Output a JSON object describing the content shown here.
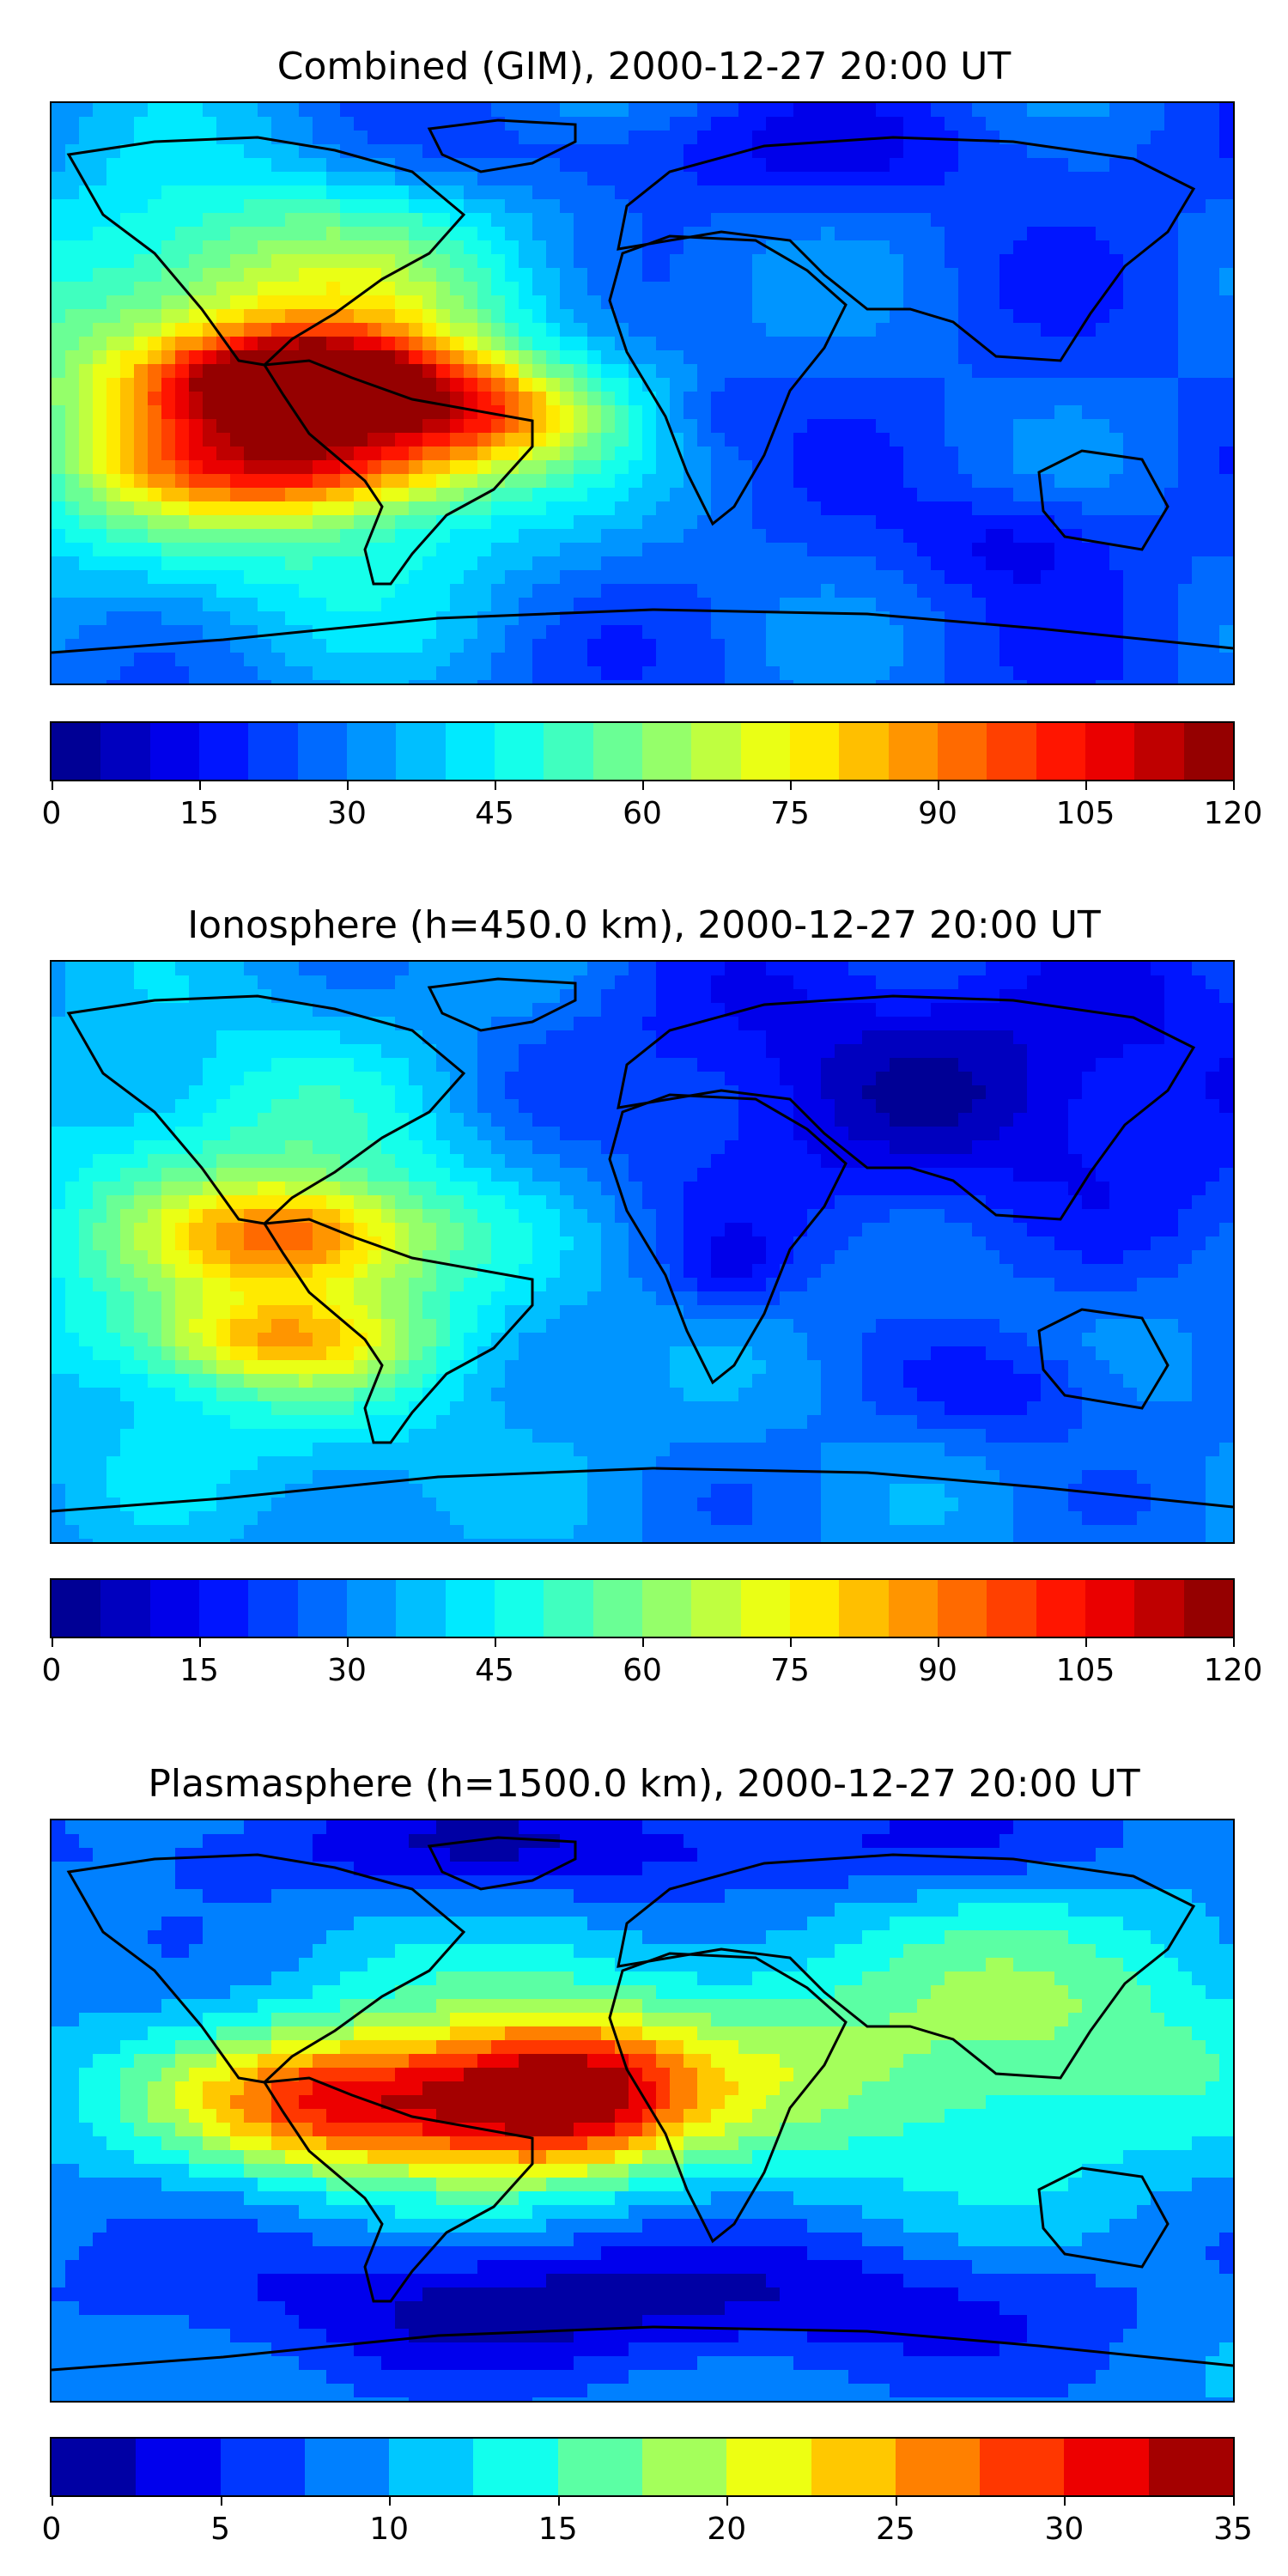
{
  "figure": {
    "panels": [
      {
        "id": "combined",
        "title": "Combined (GIM), 2000-12-27 20:00 UT",
        "field": "combined",
        "colorbar": {
          "min": 0,
          "max": 120,
          "levels": 24,
          "ticks": [
            "0",
            "15",
            "30",
            "45",
            "60",
            "75",
            "90",
            "105",
            "120"
          ]
        }
      },
      {
        "id": "ionosphere",
        "title": "Ionosphere  (h=450.0 km), 2000-12-27 20:00 UT",
        "field": "ionosphere",
        "colorbar": {
          "min": 0,
          "max": 120,
          "levels": 24,
          "ticks": [
            "0",
            "15",
            "30",
            "45",
            "60",
            "75",
            "90",
            "105",
            "120"
          ]
        }
      },
      {
        "id": "plasmasphere",
        "title": "Plasmasphere (h=1500.0 km), 2000-12-27 20:00 UT",
        "field": "plasmasphere",
        "colorbar": {
          "min": 0,
          "max": 35,
          "levels": 14,
          "ticks": [
            "0",
            "5",
            "10",
            "15",
            "20",
            "25",
            "30",
            "35"
          ]
        }
      }
    ],
    "colormap": "jet",
    "land_outline_color": "#000000"
  }
}
